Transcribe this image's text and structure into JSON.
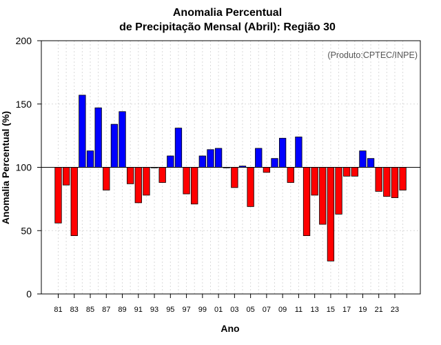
{
  "chart_data": {
    "type": "bar",
    "title_line1": "Anomalia Percentual",
    "title_line2": "de Precipitação Mensal (Abril): Região 30",
    "xlabel": "Ano",
    "ylabel": "Anomalia Percentual (%)",
    "annotation": "(Produto:CPTEC/INPE)",
    "baseline": 100,
    "ylim": [
      0,
      200
    ],
    "yticks": [
      0,
      50,
      100,
      150,
      200
    ],
    "xtick_labels": [
      "81",
      "83",
      "85",
      "87",
      "89",
      "91",
      "93",
      "95",
      "97",
      "99",
      "01",
      "03",
      "05",
      "07",
      "09",
      "11",
      "13",
      "15",
      "17",
      "19",
      "21",
      "23"
    ],
    "categories": [
      "1981",
      "1982",
      "1983",
      "1984",
      "1985",
      "1986",
      "1987",
      "1988",
      "1989",
      "1990",
      "1991",
      "1992",
      "1993",
      "1994",
      "1995",
      "1996",
      "1997",
      "1998",
      "1999",
      "2000",
      "2001",
      "2002",
      "2003",
      "2004",
      "2005",
      "2006",
      "2007",
      "2008",
      "2009",
      "2010",
      "2011",
      "2012",
      "2013",
      "2014",
      "2015",
      "2016",
      "2017",
      "2018",
      "2019",
      "2020",
      "2021",
      "2022",
      "2023",
      "2024"
    ],
    "values": [
      56,
      86,
      46,
      157,
      113,
      147,
      82,
      134,
      144,
      87,
      72,
      78,
      100,
      88,
      109,
      131,
      79,
      71,
      109,
      114,
      115,
      100,
      84,
      101,
      69,
      115,
      96,
      107,
      123,
      88,
      124,
      46,
      78,
      55,
      26,
      63,
      93,
      93,
      113,
      107,
      81,
      77,
      76,
      82
    ],
    "colors": {
      "above": "#0000ff",
      "below": "#ff0000",
      "edge": "#000000",
      "grid": "#d9d9d9",
      "annotation": "#555555"
    }
  }
}
